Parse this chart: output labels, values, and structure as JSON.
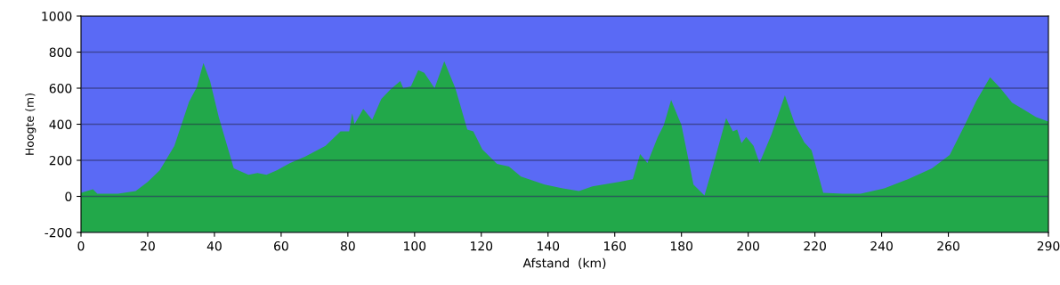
{
  "chart_data": {
    "type": "area",
    "xlabel": "Afstand  (km)",
    "ylabel": "Hoogte (m)",
    "x": [
      0,
      3.6,
      4.9,
      11.1,
      16.4,
      20,
      23.6,
      28,
      32.4,
      34.7,
      36.7,
      38.7,
      41.3,
      45.8,
      50.2,
      52.9,
      55.6,
      58.7,
      62.7,
      67.1,
      73.3,
      77.8,
      80.4,
      81.3,
      82,
      84.6,
      87.3,
      90,
      92.6,
      95.7,
      96.6,
      98.9,
      101.1,
      102.9,
      106,
      108.9,
      112.3,
      115.8,
      117.6,
      120.3,
      124.7,
      128.3,
      131.9,
      139,
      144.4,
      149.3,
      153.3,
      161.3,
      165.4,
      167.6,
      169.8,
      172.9,
      174.7,
      176.9,
      180,
      183.6,
      186.9,
      190,
      193.4,
      195.4,
      196.7,
      198,
      199.4,
      201.6,
      203.4,
      207,
      211,
      214.1,
      216.8,
      219,
      222.5,
      228.3,
      233.7,
      240.8,
      247.9,
      255.1,
      260.4,
      264.9,
      268.4,
      272.5,
      275.6,
      279.1,
      282.7,
      286.3,
      290
    ],
    "series": [
      {
        "color": "#22a84a",
        "values": [
          20,
          40,
          15,
          15,
          30,
          80,
          145,
          280,
          525,
          605,
          740,
          640,
          440,
          155,
          120,
          130,
          120,
          145,
          185,
          220,
          280,
          360,
          360,
          460,
          400,
          485,
          425,
          540,
          590,
          640,
          600,
          610,
          700,
          685,
          600,
          750,
          595,
          370,
          360,
          260,
          180,
          165,
          110,
          65,
          45,
          30,
          55,
          80,
          95,
          235,
          185,
          330,
          395,
          535,
          395,
          65,
          5,
          205,
          435,
          360,
          370,
          295,
          330,
          280,
          185,
          345,
          560,
          395,
          300,
          255,
          20,
          15,
          15,
          45,
          95,
          155,
          230,
          395,
          530,
          660,
          600,
          520,
          480,
          440,
          415
        ]
      }
    ],
    "xlim": [
      0,
      290
    ],
    "xticks": [
      0,
      20,
      40,
      60,
      80,
      100,
      120,
      140,
      160,
      180,
      200,
      220,
      240,
      260,
      290
    ],
    "ylim": [
      -200,
      1000
    ],
    "yticks": [
      -200,
      0,
      200,
      400,
      600,
      800,
      1000
    ],
    "grid": "y"
  }
}
